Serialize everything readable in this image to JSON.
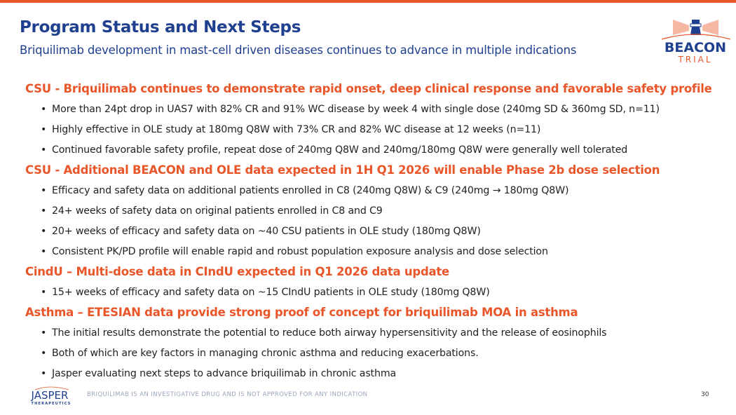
{
  "header": {
    "title": "Program Status and Next Steps",
    "subtitle": "Briquilimab development in mast-cell driven diseases continues to advance in multiple indications"
  },
  "logo": {
    "line1": "BEACON",
    "line2": "TRIAL"
  },
  "colors": {
    "accent": "#e8562a",
    "brand": "#1f3f8f"
  },
  "sections": [
    {
      "heading": "CSU - Briquilimab continues to demonstrate rapid onset, deep clinical response and favorable safety profile",
      "bullets": [
        "More than 24pt drop in UAS7 with 82% CR and 91% WC disease by week 4 with single dose (240mg SD & 360mg SD, n=11)",
        "Highly effective in OLE study at 180mg Q8W with 73% CR and 82% WC disease at 12 weeks (n=11)",
        "Continued favorable safety profile, repeat dose of 240mg Q8W and 240mg/180mg Q8W were generally well tolerated"
      ]
    },
    {
      "heading": "CSU - Additional BEACON and OLE data expected in 1H Q1 2026 will enable Phase 2b dose selection",
      "bullets": [
        "Efficacy and safety data on additional patients enrolled in C8 (240mg Q8W) & C9 (240mg → 180mg Q8W)",
        "24+ weeks of safety data on original patients enrolled in C8 and C9",
        "20+ weeks of efficacy and safety data on ~40 CSU patients in OLE study (180mg Q8W)",
        "Consistent PK/PD profile will enable rapid and robust population exposure analysis and dose selection"
      ]
    },
    {
      "heading": "CindU – Multi-dose data in CIndU expected in Q1 2026 data update",
      "bullets": [
        "15+ weeks of efficacy and safety data on ~15 CIndU patients in OLE study (180mg Q8W)"
      ]
    },
    {
      "heading": "Asthma – ETESIAN data provide strong proof of concept for briquilimab MOA in asthma",
      "bullets": [
        "The initial results demonstrate the potential to reduce both airway hypersensitivity and the release of eosinophils",
        "Both of which are key factors in managing chronic asthma and reducing exacerbations.",
        "Jasper evaluating next steps to advance briquilimab in chronic asthma"
      ]
    }
  ],
  "footer": {
    "company_logo": "JASPER THERAPEUTICS",
    "disclaimer": "BRIQUILIMAB IS AN INVESTIGATIVE DRUG AND IS NOT APPROVED FOR ANY INDICATION",
    "page": "30"
  }
}
